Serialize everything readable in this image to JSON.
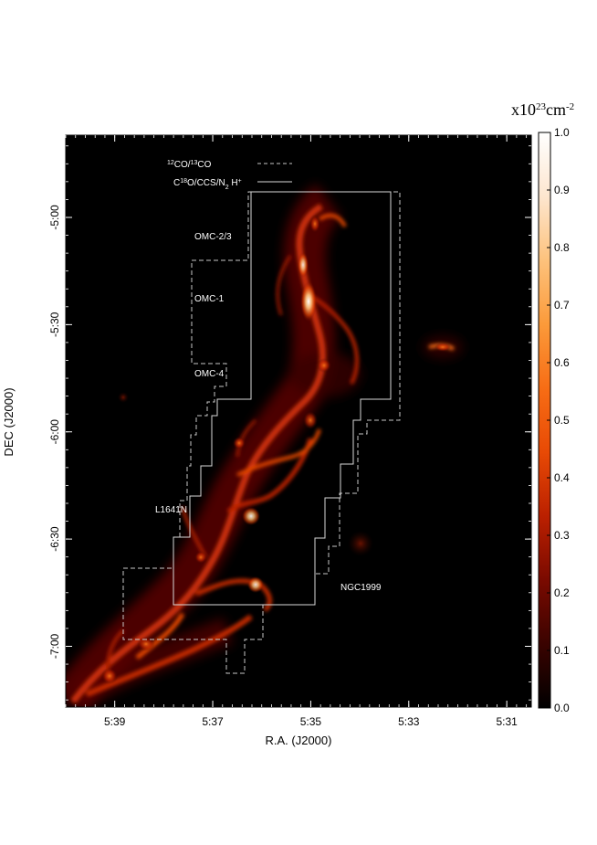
{
  "chart_data": {
    "type": "heatmap",
    "title": "",
    "xlabel": "R.A. (J2000)",
    "ylabel": "DEC (J2000)",
    "x_unit": "hours (R.A.)",
    "y_unit": "degrees (DEC)",
    "xlim": [
      "5:40:00",
      "5:30:30"
    ],
    "ylim": [
      "-7:17",
      "-4:37"
    ],
    "x_ticks": [
      "5:39",
      "5:37",
      "5:35",
      "5:33",
      "5:31"
    ],
    "y_ticks": [
      "-5:00",
      "-5:30",
      "-6:00",
      "-6:30",
      "-7:00"
    ],
    "colorbar": {
      "unit_base": "x10",
      "unit_exp": "23",
      "unit_rest": "cm",
      "unit_rest_exp": "-2",
      "min": 0.0,
      "max": 1.0,
      "ticks": [
        "0.0",
        "0.1",
        "0.2",
        "0.3",
        "0.4",
        "0.5",
        "0.6",
        "0.7",
        "0.8",
        "0.9",
        "1.0"
      ],
      "colormap": [
        "#000000",
        "#3a0300",
        "#7a0a00",
        "#bb2000",
        "#e84a05",
        "#f76d15",
        "#fb9a3a",
        "#fdc27c",
        "#fde6cf",
        "#ffffff"
      ]
    },
    "legend": {
      "placement": "top-center",
      "entries": [
        {
          "iso_main": "12",
          "mol_main": "CO/",
          "iso_second": "13",
          "mol_second": "CO",
          "style": "dashed"
        },
        {
          "prefix": "C",
          "iso_main": "18",
          "rest": "O/CCS/N",
          "sub": "2",
          "tail": " H",
          "sup": "+",
          "style": "solid"
        }
      ]
    },
    "regions": [
      {
        "label": "OMC-2/3",
        "ra": "5:36:00",
        "dec": "-5:02"
      },
      {
        "label": "OMC-1",
        "ra": "5:36:15",
        "dec": "-5:23"
      },
      {
        "label": "OMC-4",
        "ra": "5:36:15",
        "dec": "-5:46"
      },
      {
        "label": "L1641N",
        "ra": "5:37:40",
        "dec": "-6:23"
      },
      {
        "label": "NGC1999",
        "ra": "5:33:55",
        "dec": "-6:45"
      }
    ],
    "colors": {
      "frame_bg": "#000000",
      "emission_low": "#7a0a00",
      "emission_mid": "#e84a05",
      "emission_high": "#ffffff",
      "outline_solid": "#d8d8d8",
      "outline_dashed": "#c8c8c8"
    }
  }
}
